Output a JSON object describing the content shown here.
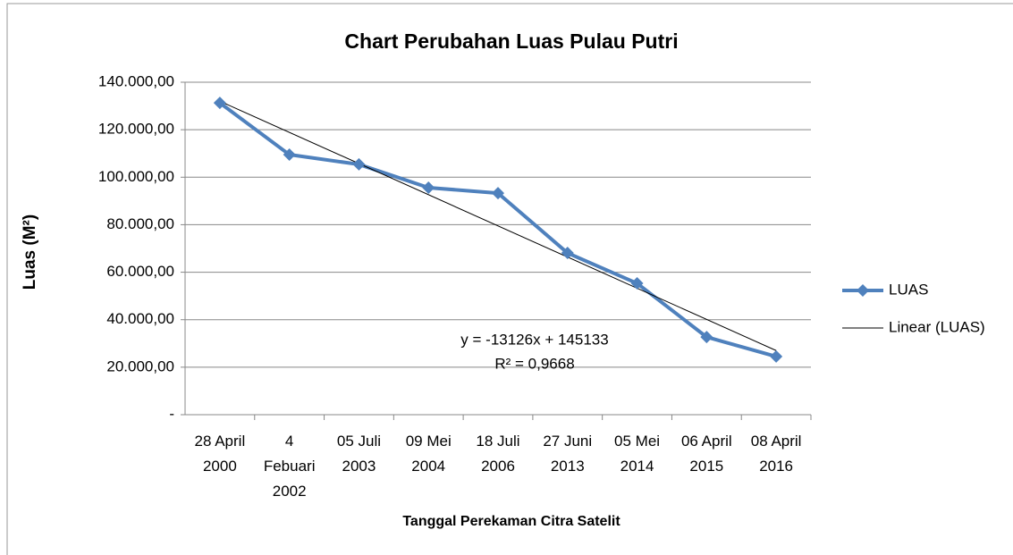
{
  "chart_data": {
    "type": "line",
    "title": "Chart Perubahan Luas Pulau Putri",
    "x_label": "Tanggal Perekaman Citra Satelit",
    "y_label": "Luas  (M²)",
    "categories": [
      "28 April\n2000",
      "4\nFebuari\n2002",
      "05 Juli\n2003",
      "09 Mei\n2004",
      "18 Juli\n2006",
      "27 Juni\n2013",
      "05 Mei\n2014",
      "06 April\n2015",
      "08 April\n2016"
    ],
    "series": [
      {
        "name": "LUAS",
        "color": "#4f81bd",
        "values": [
          131300,
          109500,
          105400,
          95600,
          93300,
          68100,
          55300,
          32700,
          24500
        ]
      }
    ],
    "trendline": {
      "name": "Linear (LUAS)",
      "color": "#000000",
      "slope": -13126,
      "intercept": 145133,
      "equation": "y = -13126x + 145133",
      "r_squared": "R² = 0,9668"
    },
    "ylim": [
      0,
      140000
    ],
    "yticks": [
      {
        "value": 0,
        "label": "-"
      },
      {
        "value": 20000,
        "label": "20.000,00"
      },
      {
        "value": 40000,
        "label": "40.000,00"
      },
      {
        "value": 60000,
        "label": "60.000,00"
      },
      {
        "value": 80000,
        "label": "80.000,00"
      },
      {
        "value": 100000,
        "label": "100.000,00"
      },
      {
        "value": 120000,
        "label": "120.000,00"
      },
      {
        "value": 140000,
        "label": "140.000,00"
      }
    ],
    "grid": true,
    "legend": "right"
  }
}
